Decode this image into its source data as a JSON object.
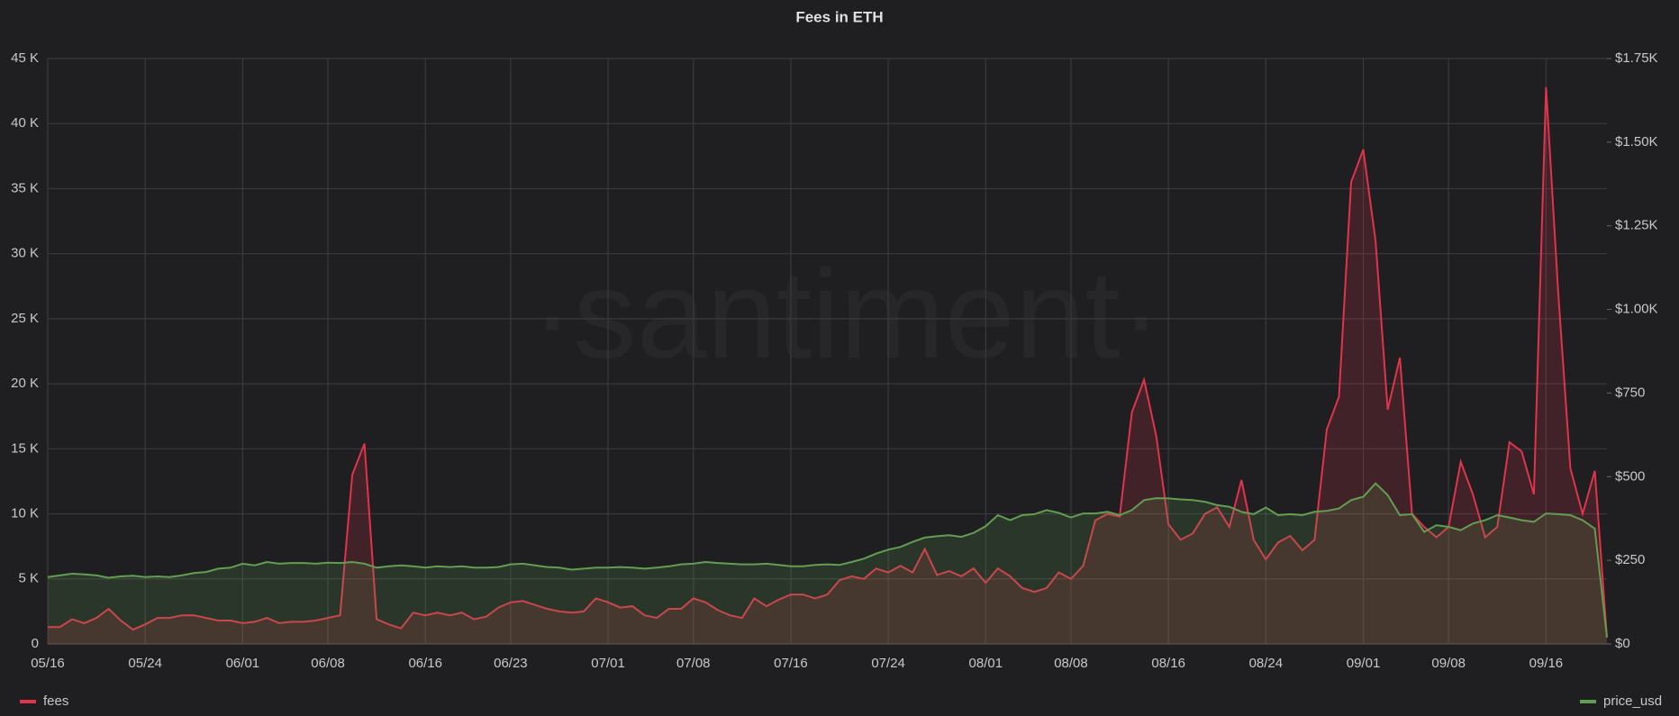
{
  "chart_data": {
    "type": "line",
    "title": "Fees in ETH",
    "watermark": "·santiment·",
    "x": [
      "05/16",
      "05/17",
      "05/18",
      "05/19",
      "05/20",
      "05/21",
      "05/22",
      "05/23",
      "05/24",
      "05/25",
      "05/26",
      "05/27",
      "05/28",
      "05/29",
      "05/30",
      "05/31",
      "06/01",
      "06/02",
      "06/03",
      "06/04",
      "06/05",
      "06/06",
      "06/07",
      "06/08",
      "06/09",
      "06/10",
      "06/11",
      "06/12",
      "06/13",
      "06/14",
      "06/15",
      "06/16",
      "06/17",
      "06/18",
      "06/19",
      "06/20",
      "06/21",
      "06/22",
      "06/23",
      "06/24",
      "06/25",
      "06/26",
      "06/27",
      "06/28",
      "06/29",
      "06/30",
      "07/01",
      "07/02",
      "07/03",
      "07/04",
      "07/05",
      "07/06",
      "07/07",
      "07/08",
      "07/09",
      "07/10",
      "07/11",
      "07/12",
      "07/13",
      "07/14",
      "07/15",
      "07/16",
      "07/17",
      "07/18",
      "07/19",
      "07/20",
      "07/21",
      "07/22",
      "07/23",
      "07/24",
      "07/25",
      "07/26",
      "07/27",
      "07/28",
      "07/29",
      "07/30",
      "07/31",
      "08/01",
      "08/02",
      "08/03",
      "08/04",
      "08/05",
      "08/06",
      "08/07",
      "08/08",
      "08/09",
      "08/10",
      "08/11",
      "08/12",
      "08/13",
      "08/14",
      "08/15",
      "08/16",
      "08/17",
      "08/18",
      "08/19",
      "08/20",
      "08/21",
      "08/22",
      "08/23",
      "08/24",
      "08/25",
      "08/26",
      "08/27",
      "08/28",
      "08/29",
      "08/30",
      "08/31",
      "09/01",
      "09/02",
      "09/03",
      "09/04",
      "09/05",
      "09/06",
      "09/07",
      "09/08",
      "09/09",
      "09/10",
      "09/11",
      "09/12",
      "09/13",
      "09/14",
      "09/15",
      "09/16",
      "09/17",
      "09/18",
      "09/19",
      "09/20",
      "09/21"
    ],
    "xticks": [
      "05/16",
      "05/24",
      "06/01",
      "06/08",
      "06/16",
      "06/23",
      "07/01",
      "07/08",
      "07/16",
      "07/24",
      "08/01",
      "08/08",
      "08/16",
      "08/24",
      "09/01",
      "09/08",
      "09/16"
    ],
    "ylim": [
      0,
      45000
    ],
    "yticks": [
      0,
      {
        "value": 5000,
        "label": "5 K"
      },
      {
        "value": 10000,
        "label": "10 K"
      },
      {
        "value": 15000,
        "label": "15 K"
      },
      {
        "value": 20000,
        "label": "20 K"
      },
      {
        "value": 25000,
        "label": "25 K"
      },
      {
        "value": 30000,
        "label": "30 K"
      },
      {
        "value": 35000,
        "label": "35 K"
      },
      {
        "value": 40000,
        "label": "40 K"
      },
      {
        "value": 45000,
        "label": "45 K"
      }
    ],
    "y2lim": [
      0,
      1750
    ],
    "y2ticks": [
      {
        "value": 0,
        "label": "$0"
      },
      {
        "value": 250,
        "label": "$250"
      },
      {
        "value": 500,
        "label": "$500"
      },
      {
        "value": 750,
        "label": "$750"
      },
      {
        "value": 1000,
        "label": "$1.00K"
      },
      {
        "value": 1250,
        "label": "$1.25K"
      },
      {
        "value": 1500,
        "label": "$1.50K"
      },
      {
        "value": 1750,
        "label": "$1.75K"
      }
    ],
    "grid": true,
    "series": [
      {
        "name": "fees",
        "color": "#e0344a",
        "values": [
          1300,
          1300,
          1900,
          1600,
          2000,
          2700,
          1800,
          1100,
          1500,
          2000,
          2000,
          2200,
          2200,
          2000,
          1800,
          1800,
          1600,
          1700,
          2000,
          1600,
          1700,
          1700,
          1800,
          2000,
          2200,
          13000,
          15400,
          1900,
          1500,
          1200,
          2400,
          2200,
          2400,
          2200,
          2400,
          1900,
          2100,
          2800,
          3200,
          3300,
          3000,
          2700,
          2500,
          2400,
          2500,
          3500,
          3200,
          2800,
          2900,
          2200,
          2000,
          2700,
          2700,
          3500,
          3200,
          2600,
          2200,
          2000,
          3500,
          2900,
          3400,
          3800,
          3800,
          3500,
          3800,
          4900,
          5200,
          5000,
          5800,
          5500,
          6000,
          5500,
          7300,
          5300,
          5600,
          5200,
          5800,
          4700,
          5800,
          5200,
          4300,
          4000,
          4300,
          5500,
          5000,
          6000,
          9500,
          10000,
          9800,
          17800,
          20300,
          16000,
          9200,
          8000,
          8500,
          10000,
          10500,
          9000,
          12600,
          8000,
          6500,
          7800,
          8300,
          7200,
          8000,
          16500,
          19000,
          35500,
          38000,
          31000,
          18000,
          22000,
          10000,
          9000,
          8200,
          9000,
          14000,
          11500,
          8200,
          9000,
          15500,
          14800,
          11500,
          42800,
          27000,
          13500,
          10000,
          13300,
          500
        ]
      },
      {
        "name": "price_usd",
        "color": "#629e51",
        "axis": "y2",
        "values": [
          200,
          205,
          210,
          208,
          205,
          198,
          202,
          204,
          200,
          202,
          200,
          205,
          212,
          215,
          225,
          228,
          240,
          235,
          245,
          240,
          242,
          242,
          240,
          243,
          242,
          245,
          240,
          228,
          232,
          235,
          232,
          228,
          232,
          230,
          232,
          228,
          228,
          230,
          238,
          240,
          235,
          230,
          228,
          222,
          225,
          228,
          228,
          230,
          228,
          225,
          228,
          232,
          238,
          240,
          245,
          242,
          240,
          238,
          238,
          240,
          236,
          232,
          232,
          236,
          238,
          236,
          245,
          255,
          270,
          282,
          290,
          305,
          318,
          322,
          325,
          320,
          332,
          352,
          385,
          370,
          385,
          388,
          400,
          392,
          378,
          390,
          390,
          395,
          385,
          400,
          430,
          436,
          435,
          432,
          430,
          425,
          415,
          410,
          395,
          388,
          408,
          385,
          388,
          385,
          395,
          398,
          405,
          430,
          440,
          480,
          445,
          385,
          388,
          335,
          355,
          350,
          340,
          360,
          370,
          385,
          378,
          370,
          365,
          390,
          388,
          385,
          370,
          345,
          20
        ]
      }
    ]
  }
}
